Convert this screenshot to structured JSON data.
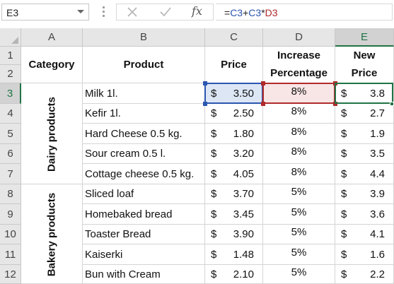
{
  "formula_bar": {
    "name_box": "E3",
    "cancel_icon": "close-icon",
    "enter_icon": "check-icon",
    "fx_label": "fx",
    "formula_parts": [
      {
        "text": "=",
        "kind": "op"
      },
      {
        "text": "C3",
        "kind": "c"
      },
      {
        "text": "+",
        "kind": "op"
      },
      {
        "text": "C3",
        "kind": "c"
      },
      {
        "text": "*",
        "kind": "op"
      },
      {
        "text": "D3",
        "kind": "d"
      }
    ]
  },
  "columns": [
    "A",
    "B",
    "C",
    "D",
    "E"
  ],
  "rows": [
    "1",
    "2",
    "3",
    "4",
    "5",
    "6",
    "7",
    "8",
    "9",
    "10",
    "11",
    "12"
  ],
  "headers": {
    "category": "Category",
    "product": "Product",
    "price": "Price",
    "increase_line1": "Increase",
    "increase_line2": "Percentage",
    "new_line1": "New",
    "new_line2": "Price"
  },
  "currency": "$",
  "groups": [
    {
      "label": "Dairy products",
      "start_row": 3,
      "end_row": 7
    },
    {
      "label": "Bakery products",
      "start_row": 8,
      "end_row": 12
    }
  ],
  "items": [
    {
      "product": "Milk 1l.",
      "price": "3.50",
      "increase": "8%",
      "new_price": "3.8"
    },
    {
      "product": "Kefir 1l.",
      "price": "2.50",
      "increase": "8%",
      "new_price": "2.7"
    },
    {
      "product": "Hard Cheese 0.5 kg.",
      "price": "1.80",
      "increase": "8%",
      "new_price": "1.9"
    },
    {
      "product": "Sour cream 0.5 l.",
      "price": "3.20",
      "increase": "8%",
      "new_price": "3.5"
    },
    {
      "product": "Cottage cheese 0.5 kg.",
      "price": "4.05",
      "increase": "8%",
      "new_price": "4.4"
    },
    {
      "product": "Sliced loaf",
      "price": "3.70",
      "increase": "5%",
      "new_price": "3.9"
    },
    {
      "product": "Homebaked bread",
      "price": "3.45",
      "increase": "5%",
      "new_price": "3.6"
    },
    {
      "product": "Toaster Bread",
      "price": "3.90",
      "increase": "5%",
      "new_price": "4.1"
    },
    {
      "product": "Kaiserki",
      "price": "1.48",
      "increase": "5%",
      "new_price": "1.6"
    },
    {
      "product": "Bun with Cream",
      "price": "2.10",
      "increase": "5%",
      "new_price": "2.2"
    }
  ],
  "colors": {
    "selection": "#217346",
    "ref_c": "#2b56b0",
    "ref_c_fill": "#dce6f5",
    "ref_d": "#b02a2a",
    "ref_d_fill": "#f8e5e5"
  },
  "active_cell": "E3"
}
